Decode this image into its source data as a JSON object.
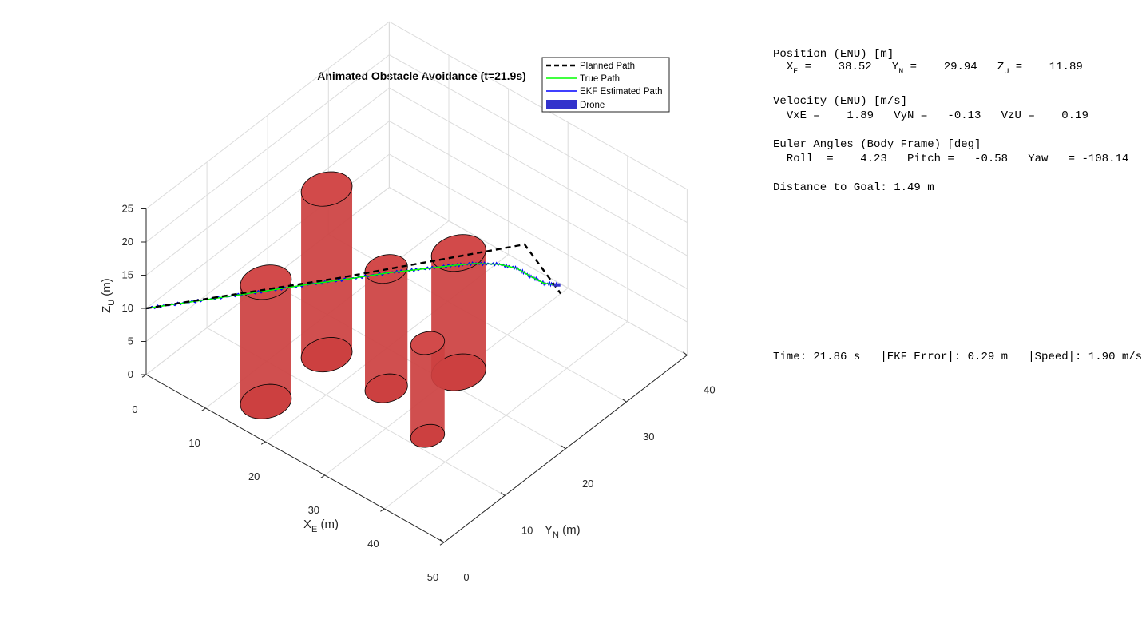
{
  "chart_data": {
    "type": "line",
    "title": "Animated Obstacle Avoidance (t=21.9s)",
    "xlabel": "X",
    "xlabel_sub": "E",
    "xlabel_unit": " (m)",
    "ylabel": "Y",
    "ylabel_sub": "N",
    "ylabel_unit": " (m)",
    "zlabel": "Z",
    "zlabel_sub": "U",
    "zlabel_unit": " (m)",
    "xlim": [
      0,
      50
    ],
    "ylim": [
      0,
      40
    ],
    "zlim": [
      0,
      25
    ],
    "xticks": [
      0,
      10,
      20,
      30,
      40,
      50
    ],
    "yticks": [
      0,
      10,
      20,
      30,
      40
    ],
    "zticks": [
      0,
      5,
      10,
      15,
      20,
      25
    ],
    "grid": true,
    "legend_position": "top-right",
    "legend": [
      "Planned Path",
      "True Path",
      "EKF Estimated Path",
      "Drone"
    ],
    "colors": {
      "planned": "#000000",
      "true": "#00ff00",
      "ekf": "#0000ff",
      "drone": "#3333cc",
      "obstacle": "#cc4040"
    },
    "series": [
      {
        "name": "Planned Path",
        "style": "dashed",
        "x": [
          0,
          19,
          37,
          40
        ],
        "y": [
          0,
          13,
          26,
          29
        ],
        "z": [
          10,
          15,
          20,
          12
        ]
      },
      {
        "name": "True Path",
        "x": [
          0,
          4,
          8,
          12,
          16,
          20,
          24,
          27,
          30,
          32,
          34,
          35.5,
          36.5,
          37.5,
          38.5
        ],
        "y": [
          0,
          2.7,
          5.4,
          8.1,
          10.9,
          13.5,
          16.3,
          18.3,
          20.7,
          22.6,
          24.6,
          26.2,
          27.4,
          28.7,
          29.9
        ],
        "z": [
          10,
          11,
          12,
          13,
          14,
          15,
          16,
          16.6,
          17,
          17,
          16.5,
          15.5,
          14,
          12.5,
          11.9
        ]
      },
      {
        "name": "EKF Estimated Path",
        "x": [
          0,
          4,
          8,
          12,
          16,
          20,
          24,
          27,
          30,
          32,
          34,
          35.5,
          36.5,
          37.5,
          38.5
        ],
        "y": [
          0,
          2.7,
          5.4,
          8.1,
          10.9,
          13.5,
          16.3,
          18.3,
          20.7,
          22.6,
          24.6,
          26.2,
          27.4,
          28.7,
          29.9
        ],
        "z": [
          10,
          11,
          12,
          13,
          14,
          15,
          16,
          16.6,
          17,
          17,
          16.5,
          15.5,
          14,
          12.5,
          11.9
        ]
      }
    ],
    "obstacles": [
      {
        "x": 15,
        "y": 5,
        "r": 3,
        "z0": 0,
        "z1": 18
      },
      {
        "x": 15,
        "y": 15,
        "r": 3,
        "z0": 0,
        "z1": 25
      },
      {
        "x": 25,
        "y": 15,
        "r": 2.5,
        "z0": 0,
        "z1": 18
      },
      {
        "x": 30,
        "y": 22,
        "r": 3.2,
        "z0": 0,
        "z1": 18
      },
      {
        "x": 35,
        "y": 12,
        "r": 2,
        "z0": 0,
        "z1": 14
      }
    ],
    "drone": {
      "x": 38.5,
      "y": 29.9,
      "z": 11.9
    }
  },
  "telemetry": {
    "position_header": "Position (ENU) [m]",
    "xe_label": "X",
    "xe_sub": "E",
    "xe_value": " =    38.52   ",
    "yn_label": "Y",
    "yn_sub": "N",
    "yn_value": " =    29.94   ",
    "zu_label": "Z",
    "zu_sub": "U",
    "zu_value": " =    11.89",
    "velocity_header": "Velocity (ENU) [m/s]",
    "velocity_line": "  VxE =    1.89   VyN =   -0.13   VzU =    0.19",
    "euler_header": "Euler Angles (Body Frame) [deg]",
    "euler_line": "  Roll  =    4.23   Pitch =   -0.58   Yaw   = -108.14",
    "distance_line": "Distance to Goal: 1.49 m",
    "status_line": "Time: 21.86 s   |EKF Error|: 0.29 m   |Speed|: 1.90 m/s"
  }
}
